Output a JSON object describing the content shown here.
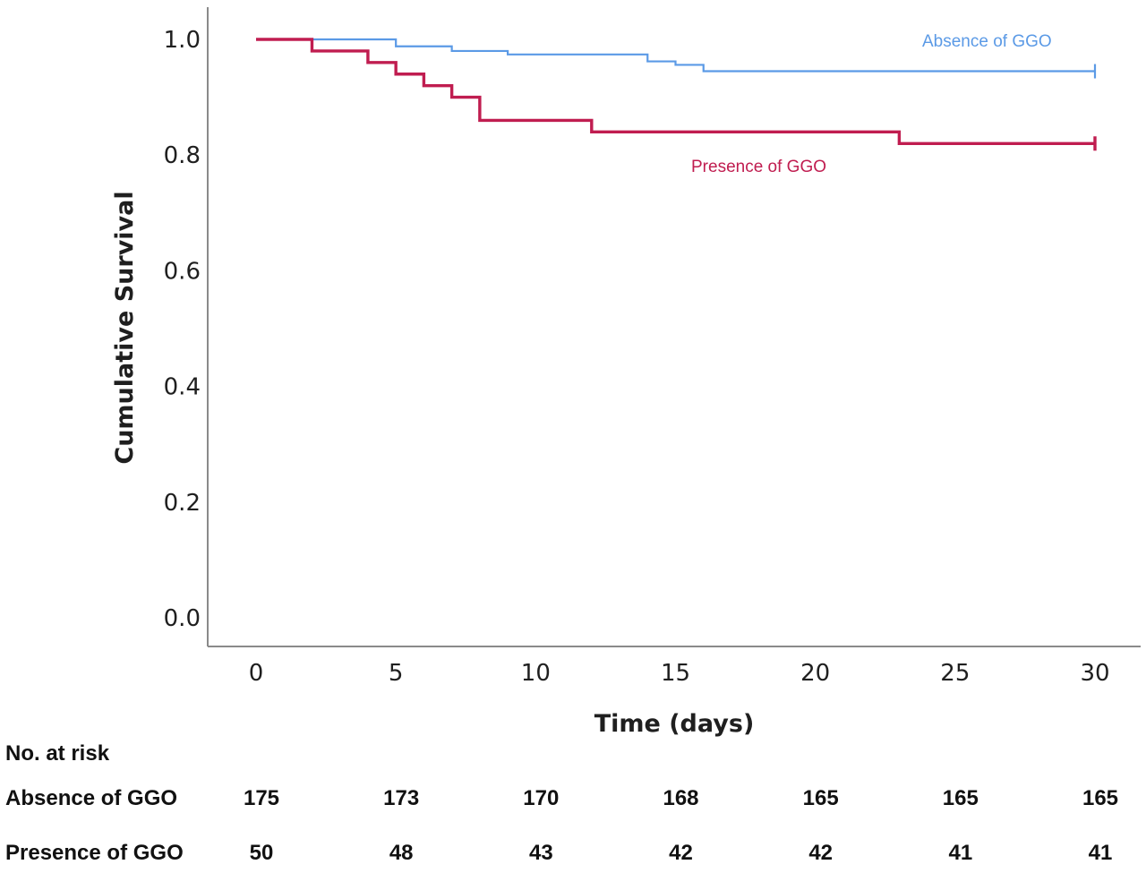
{
  "chart_data": {
    "type": "line",
    "xlabel": "Time (days)",
    "ylabel": "Cumulative Survival",
    "xlim": [
      0,
      30
    ],
    "ylim": [
      0,
      1
    ],
    "x_ticks": [
      0,
      5,
      10,
      15,
      20,
      25,
      30
    ],
    "y_ticks": [
      "0.0",
      "0.2",
      "0.4",
      "0.6",
      "0.8",
      "1.0"
    ],
    "grid": false,
    "legend": "inline labels",
    "series": [
      {
        "name": "Absence of GGO",
        "color": "#5b9ae6",
        "steps": [
          {
            "x": 0,
            "y": 1.0
          },
          {
            "x": 5,
            "y": 0.988
          },
          {
            "x": 7,
            "y": 0.98
          },
          {
            "x": 9,
            "y": 0.974
          },
          {
            "x": 14,
            "y": 0.962
          },
          {
            "x": 15,
            "y": 0.956
          },
          {
            "x": 16,
            "y": 0.945
          }
        ],
        "end_x": 30,
        "censor_marks": [
          30
        ]
      },
      {
        "name": "Presence of GGO",
        "color": "#c01d50",
        "steps": [
          {
            "x": 0,
            "y": 1.0
          },
          {
            "x": 2,
            "y": 0.98
          },
          {
            "x": 4,
            "y": 0.96
          },
          {
            "x": 5,
            "y": 0.94
          },
          {
            "x": 6,
            "y": 0.92
          },
          {
            "x": 7,
            "y": 0.9
          },
          {
            "x": 8,
            "y": 0.86
          },
          {
            "x": 12,
            "y": 0.84
          },
          {
            "x": 23,
            "y": 0.82
          }
        ],
        "end_x": 30,
        "censor_marks": [
          30
        ]
      }
    ]
  },
  "risk_table": {
    "header": "No. at risk",
    "rows": [
      {
        "label": "Absence of GGO",
        "values": [
          "175",
          "173",
          "170",
          "168",
          "165",
          "165",
          "165"
        ]
      },
      {
        "label": "Presence of GGO",
        "values": [
          "50",
          "48",
          "43",
          "42",
          "42",
          "41",
          "41"
        ]
      }
    ]
  }
}
